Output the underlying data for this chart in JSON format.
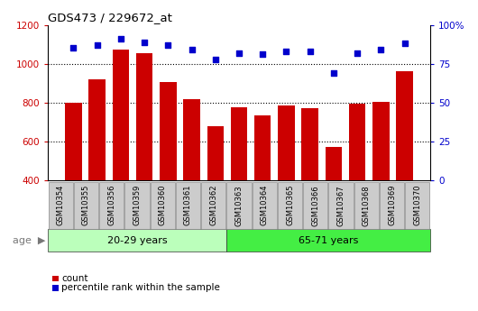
{
  "title": "GDS473 / 229672_at",
  "samples": [
    "GSM10354",
    "GSM10355",
    "GSM10356",
    "GSM10359",
    "GSM10360",
    "GSM10361",
    "GSM10362",
    "GSM10363",
    "GSM10364",
    "GSM10365",
    "GSM10366",
    "GSM10367",
    "GSM10368",
    "GSM10369",
    "GSM10370"
  ],
  "counts": [
    800,
    920,
    1075,
    1055,
    905,
    820,
    680,
    775,
    735,
    785,
    770,
    570,
    795,
    805,
    960
  ],
  "percentile_ranks": [
    85,
    87,
    91,
    89,
    87,
    84,
    78,
    82,
    81,
    83,
    83,
    69,
    82,
    84,
    88
  ],
  "group1_label": "20-29 years",
  "group2_label": "65-71 years",
  "group1_count": 7,
  "group2_count": 8,
  "ylim_left": [
    400,
    1200
  ],
  "ylim_right": [
    0,
    100
  ],
  "bar_color": "#cc0000",
  "dot_color": "#0000cc",
  "group1_color": "#bbffbb",
  "group2_color": "#44ee44",
  "tick_bg_color": "#cccccc",
  "age_label": "age",
  "legend_count": "count",
  "legend_pct": "percentile rank within the sample",
  "yticks_left": [
    400,
    600,
    800,
    1000,
    1200
  ],
  "yticks_right": [
    0,
    25,
    50,
    75,
    100
  ],
  "bar_width": 0.7
}
